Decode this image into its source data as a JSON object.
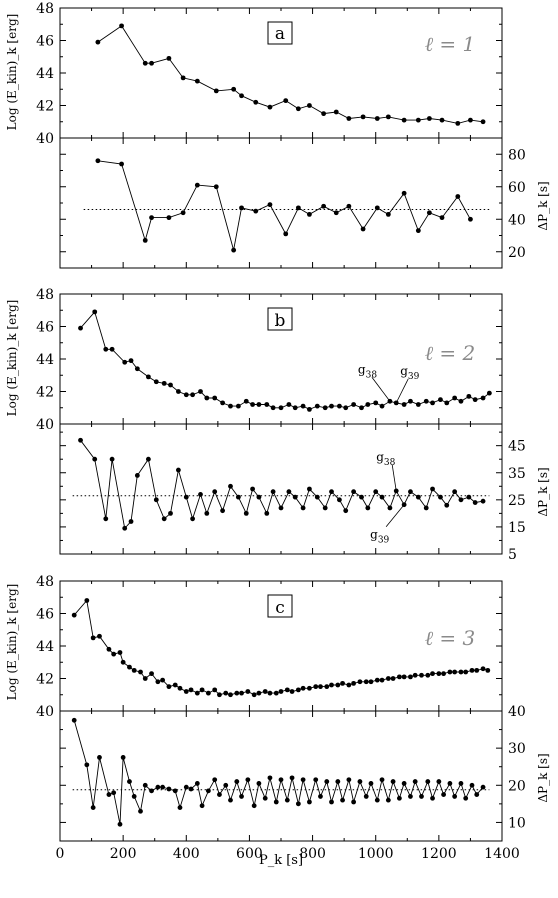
{
  "figure": {
    "xlabel": "P_k [s]",
    "x_ticks": [
      0,
      200,
      400,
      600,
      800,
      1000,
      1200,
      1400
    ],
    "xlim": [
      0,
      1400
    ]
  },
  "chart_data": [
    {
      "panel": "a",
      "type": "line",
      "ell_label": "ℓ = 1",
      "top": {
        "ylabel": "Log (E_kin)_k [erg]",
        "ylim": [
          40,
          48
        ],
        "y_ticks": [
          40,
          42,
          44,
          46,
          48
        ],
        "x": [
          120,
          195,
          270,
          290,
          345,
          390,
          435,
          495,
          550,
          575,
          620,
          665,
          715,
          755,
          790,
          835,
          875,
          915,
          960,
          1005,
          1040,
          1090,
          1135,
          1170,
          1210,
          1260,
          1300,
          1340
        ],
        "y": [
          45.9,
          46.9,
          44.6,
          44.6,
          44.9,
          43.7,
          43.5,
          42.9,
          43.0,
          42.6,
          42.2,
          41.9,
          42.3,
          41.8,
          42.0,
          41.5,
          41.6,
          41.2,
          41.3,
          41.2,
          41.3,
          41.1,
          41.1,
          41.2,
          41.1,
          40.9,
          41.1,
          41.0
        ]
      },
      "bottom": {
        "ylabel": "ΔP_k [s]",
        "ylim": [
          10,
          90
        ],
        "y_ticks": [
          20,
          40,
          60,
          80
        ],
        "mean": 46,
        "x": [
          120,
          195,
          270,
          290,
          345,
          390,
          435,
          495,
          550,
          575,
          620,
          665,
          715,
          755,
          790,
          835,
          875,
          915,
          960,
          1005,
          1040,
          1090,
          1135,
          1170,
          1210,
          1260,
          1300
        ],
        "y": [
          76,
          74,
          27,
          41,
          41,
          44,
          61,
          60,
          21,
          47,
          45,
          49,
          31,
          47,
          43,
          48,
          44,
          48,
          34,
          47,
          43,
          56,
          33,
          44,
          41,
          54,
          40
        ]
      }
    },
    {
      "panel": "b",
      "type": "line",
      "ell_label": "ℓ = 2",
      "top": {
        "ylabel": "Log (E_kin)_k [erg]",
        "ylim": [
          40,
          48
        ],
        "y_ticks": [
          40,
          42,
          44,
          46,
          48
        ],
        "x": [
          65,
          110,
          145,
          165,
          205,
          225,
          245,
          280,
          305,
          330,
          350,
          375,
          400,
          420,
          445,
          465,
          490,
          515,
          540,
          565,
          590,
          610,
          630,
          655,
          675,
          700,
          725,
          745,
          770,
          790,
          815,
          840,
          860,
          885,
          905,
          930,
          955,
          975,
          1000,
          1020,
          1045,
          1065,
          1090,
          1110,
          1135,
          1160,
          1180,
          1205,
          1225,
          1250,
          1270,
          1295,
          1315,
          1340,
          1360
        ],
        "y": [
          45.9,
          46.9,
          44.6,
          44.6,
          43.8,
          43.9,
          43.4,
          42.9,
          42.6,
          42.5,
          42.4,
          42.0,
          41.8,
          41.8,
          42.0,
          41.6,
          41.6,
          41.3,
          41.1,
          41.1,
          41.4,
          41.2,
          41.2,
          41.2,
          41.0,
          41.0,
          41.2,
          41.0,
          41.1,
          40.9,
          41.1,
          41.0,
          41.1,
          41.1,
          41.0,
          41.2,
          41.0,
          41.2,
          41.3,
          41.1,
          41.4,
          41.3,
          41.2,
          41.4,
          41.2,
          41.4,
          41.3,
          41.5,
          41.3,
          41.6,
          41.4,
          41.7,
          41.5,
          41.6,
          41.9
        ]
      },
      "bottom": {
        "ylabel": "ΔP_k [s]",
        "ylim": [
          5,
          53
        ],
        "y_ticks": [
          5,
          15,
          25,
          35,
          45
        ],
        "mean": 26.5,
        "x": [
          65,
          110,
          145,
          165,
          205,
          225,
          245,
          280,
          305,
          330,
          350,
          375,
          400,
          420,
          445,
          465,
          490,
          515,
          540,
          565,
          590,
          610,
          630,
          655,
          675,
          700,
          725,
          745,
          770,
          790,
          815,
          840,
          860,
          885,
          905,
          930,
          955,
          975,
          1000,
          1020,
          1045,
          1065,
          1090,
          1110,
          1135,
          1160,
          1180,
          1205,
          1225,
          1250,
          1270,
          1295,
          1315,
          1340
        ],
        "y": [
          47,
          40,
          18,
          40,
          14.5,
          17,
          34,
          40,
          25,
          18,
          20,
          36,
          26,
          18,
          27,
          20,
          28,
          21,
          30,
          26,
          20,
          29,
          26,
          20,
          28,
          22,
          28,
          26,
          22,
          29,
          26,
          22,
          28,
          25,
          21,
          28,
          26,
          22,
          28,
          26,
          22,
          28.3,
          23.2,
          28,
          26,
          22,
          29,
          26,
          23,
          28,
          25,
          26,
          24,
          24.5
        ]
      },
      "annotations": [
        {
          "where": "top",
          "text": "g38",
          "point_index": 40
        },
        {
          "where": "top",
          "text": "g39",
          "point_index": 41
        },
        {
          "where": "bottom",
          "text": "g38",
          "point_index": 41
        },
        {
          "where": "bottom",
          "text": "g39",
          "point_index": 42
        }
      ]
    },
    {
      "panel": "c",
      "type": "line",
      "ell_label": "ℓ = 3",
      "top": {
        "ylabel": "Log (E_kin)_k [erg]",
        "ylim": [
          40,
          48
        ],
        "y_ticks": [
          40,
          42,
          44,
          46,
          48
        ],
        "x": [
          45,
          85,
          105,
          125,
          155,
          170,
          190,
          200,
          220,
          235,
          255,
          270,
          290,
          310,
          325,
          345,
          365,
          380,
          400,
          415,
          435,
          450,
          470,
          490,
          505,
          525,
          540,
          560,
          575,
          595,
          615,
          630,
          650,
          665,
          685,
          700,
          720,
          735,
          755,
          770,
          790,
          810,
          825,
          845,
          860,
          880,
          895,
          915,
          930,
          950,
          970,
          985,
          1005,
          1020,
          1040,
          1055,
          1075,
          1090,
          1110,
          1125,
          1145,
          1165,
          1180,
          1200,
          1215,
          1235,
          1250,
          1270,
          1285,
          1305,
          1320,
          1340,
          1355
        ],
        "y": [
          45.9,
          46.8,
          44.5,
          44.6,
          43.8,
          43.5,
          43.6,
          43.0,
          42.7,
          42.5,
          42.4,
          42.0,
          42.3,
          41.8,
          41.9,
          41.5,
          41.6,
          41.4,
          41.2,
          41.3,
          41.1,
          41.3,
          41.1,
          41.3,
          41.0,
          41.1,
          41.0,
          41.1,
          41.1,
          41.2,
          41.0,
          41.1,
          41.2,
          41.1,
          41.1,
          41.2,
          41.3,
          41.2,
          41.3,
          41.4,
          41.4,
          41.5,
          41.5,
          41.5,
          41.6,
          41.6,
          41.7,
          41.6,
          41.7,
          41.8,
          41.8,
          41.8,
          41.9,
          41.9,
          42.0,
          42.0,
          42.1,
          42.1,
          42.1,
          42.2,
          42.2,
          42.2,
          42.3,
          42.3,
          42.3,
          42.4,
          42.4,
          42.4,
          42.4,
          42.5,
          42.5,
          42.6,
          42.5
        ]
      },
      "bottom": {
        "ylabel": "ΔP_k [s]",
        "ylim": [
          5,
          40
        ],
        "y_ticks": [
          10,
          20,
          30,
          40
        ],
        "mean": 18.8,
        "x": [
          45,
          85,
          105,
          125,
          155,
          170,
          190,
          200,
          220,
          235,
          255,
          270,
          290,
          310,
          325,
          345,
          365,
          380,
          400,
          415,
          435,
          450,
          470,
          490,
          505,
          525,
          540,
          560,
          575,
          595,
          615,
          630,
          650,
          665,
          685,
          700,
          720,
          735,
          755,
          770,
          790,
          810,
          825,
          845,
          860,
          880,
          895,
          915,
          930,
          950,
          970,
          985,
          1005,
          1020,
          1040,
          1055,
          1075,
          1090,
          1110,
          1125,
          1145,
          1165,
          1180,
          1200,
          1215,
          1235,
          1250,
          1270,
          1285,
          1305,
          1320,
          1340
        ],
        "y": [
          37.5,
          25.5,
          14,
          27.5,
          17.5,
          18,
          9.5,
          27.5,
          21,
          17,
          13,
          20,
          18.5,
          19.5,
          19.5,
          19,
          18.5,
          14,
          19.5,
          19,
          20.5,
          14.5,
          18.5,
          21.5,
          17.5,
          20,
          16,
          21,
          17,
          21.5,
          14.5,
          20.5,
          16.5,
          22,
          15.5,
          21.5,
          16,
          22,
          15,
          21.5,
          15.5,
          21.5,
          17,
          21,
          15.5,
          21,
          16,
          21.5,
          15.5,
          21,
          17,
          20.5,
          16,
          21.5,
          16,
          21,
          16.5,
          20.5,
          17,
          21,
          17,
          21,
          16.5,
          21,
          17.5,
          20.5,
          17,
          20.5,
          16.5,
          20,
          17.5,
          19.5
        ]
      }
    }
  ]
}
